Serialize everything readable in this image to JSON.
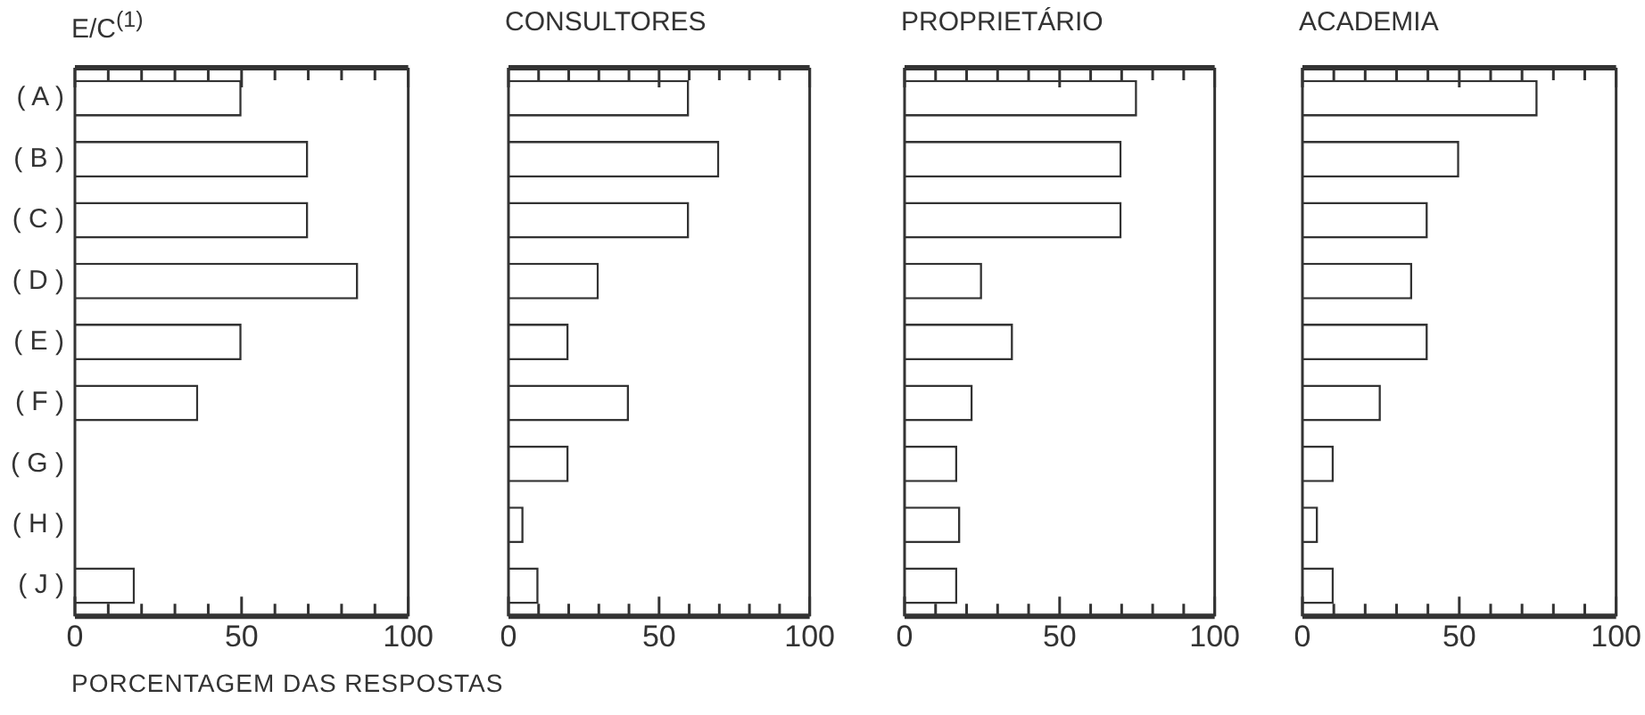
{
  "chart_data": [
    {
      "type": "bar",
      "orientation": "horizontal",
      "title": "E/C$^{(1)}$",
      "xlabel": "PORCENTAGEM DAS RESPOSTAS",
      "categories": [
        "( A )",
        "( B )",
        "( C )",
        "( D )",
        "( E )",
        "( F )",
        "( G )",
        "( H )",
        "( J )"
      ],
      "values": [
        50,
        70,
        70,
        85,
        50,
        37,
        0,
        0,
        18
      ],
      "color": "#ffffff",
      "xlim": [
        0,
        100
      ],
      "xticks": [
        0,
        {
          "value": 10,
          "label": null
        },
        {
          "value": 20,
          "label": null
        },
        {
          "value": 30,
          "label": null
        },
        {
          "value": 40,
          "label": null
        },
        50,
        {
          "value": 60,
          "label": null
        },
        {
          "value": 70,
          "label": null
        },
        {
          "value": 80,
          "label": null
        },
        {
          "value": 90,
          "label": null
        },
        100
      ]
    },
    {
      "type": "bar",
      "orientation": "horizontal",
      "title": "CONSULTORES",
      "tick_labels": "x",
      "categories": [
        null,
        null,
        null,
        null,
        null,
        null,
        null,
        null,
        null
      ],
      "values": [
        60,
        70,
        60,
        30,
        20,
        40,
        20,
        5,
        10
      ],
      "color": "#ffffff",
      "xlim": [
        0,
        100
      ],
      "xticks": [
        0,
        {
          "value": 10,
          "label": null
        },
        {
          "value": 20,
          "label": null
        },
        {
          "value": 30,
          "label": null
        },
        {
          "value": 40,
          "label": null
        },
        50,
        {
          "value": 60,
          "label": null
        },
        {
          "value": 70,
          "label": null
        },
        {
          "value": 80,
          "label": null
        },
        {
          "value": 90,
          "label": null
        },
        100
      ]
    },
    {
      "type": "bar",
      "orientation": "horizontal",
      "title": "PROPRIETÁRIO",
      "tick_labels": "x",
      "categories": [
        null,
        null,
        null,
        null,
        null,
        null,
        null,
        null,
        null
      ],
      "values": [
        75,
        70,
        70,
        25,
        35,
        22,
        17,
        18,
        17
      ],
      "color": "#ffffff",
      "xlim": [
        0,
        100
      ],
      "xticks": [
        0,
        {
          "value": 10,
          "label": null
        },
        {
          "value": 20,
          "label": null
        },
        {
          "value": 30,
          "label": null
        },
        {
          "value": 40,
          "label": null
        },
        50,
        {
          "value": 60,
          "label": null
        },
        {
          "value": 70,
          "label": null
        },
        {
          "value": 80,
          "label": null
        },
        {
          "value": 90,
          "label": null
        },
        100
      ]
    },
    {
      "type": "bar",
      "orientation": "horizontal",
      "title": "ACADEMIA",
      "tick_labels": "x",
      "categories": [
        null,
        null,
        null,
        null,
        null,
        null,
        null,
        null,
        null
      ],
      "values": [
        75,
        50,
        40,
        35,
        40,
        25,
        10,
        5,
        10
      ],
      "color": "#ffffff",
      "xlim": [
        0,
        100
      ],
      "xticks": [
        0,
        {
          "value": 10,
          "label": null
        },
        {
          "value": 20,
          "label": null
        },
        {
          "value": 30,
          "label": null
        },
        {
          "value": 40,
          "label": null
        },
        50,
        {
          "value": 60,
          "label": null
        },
        {
          "value": 70,
          "label": null
        },
        {
          "value": 80,
          "label": null
        },
        {
          "value": 90,
          "label": null
        },
        100
      ]
    }
  ]
}
